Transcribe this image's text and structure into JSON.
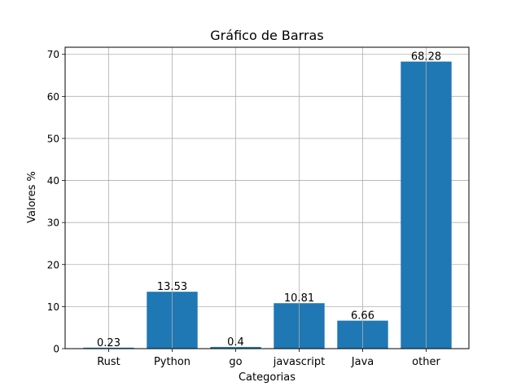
{
  "chart_data": {
    "type": "bar",
    "title": "Gráfico de Barras",
    "xlabel": "Categorias",
    "ylabel": "Valores %",
    "categories": [
      "Rust",
      "Python",
      "go",
      "javascript",
      "Java",
      "other"
    ],
    "values": [
      0.23,
      13.53,
      0.4,
      10.81,
      6.66,
      68.28
    ],
    "data_labels": [
      "0.23",
      "13.53",
      "0.4",
      "10.81",
      "6.66",
      "68.28"
    ],
    "ylim": [
      0,
      71.69
    ],
    "yticks": [
      0,
      10,
      20,
      30,
      40,
      50,
      60,
      70
    ],
    "grid": true,
    "bar_color": "#1f77b4",
    "grid_color": "#b0b0b0"
  }
}
